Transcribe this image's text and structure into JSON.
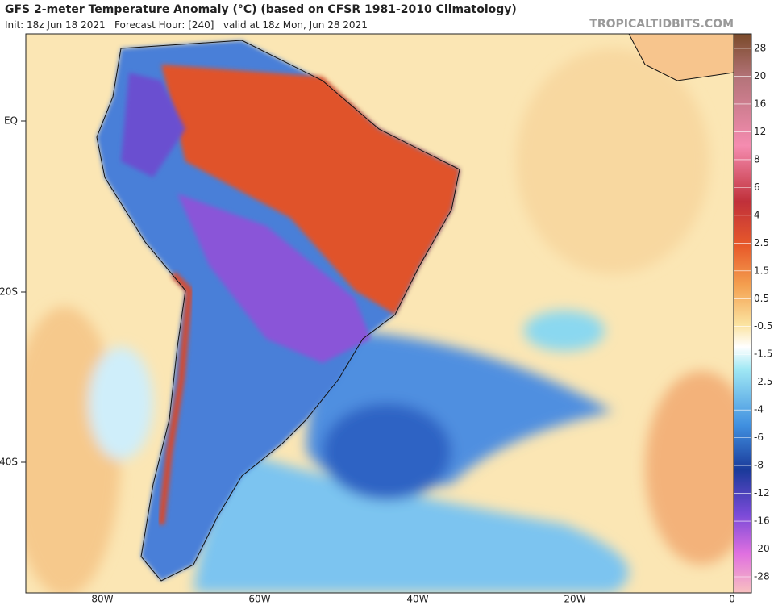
{
  "header": {
    "title": "GFS 2-meter Temperature Anomaly (°C) (based on CFSR 1981-2010 Climatology)",
    "subtitle": "Init: 18z Jun 18 2021   Forecast Hour: [240]   valid at 18z Mon, Jun 28 2021",
    "watermark": "TROPICALTIDBITS.COM"
  },
  "map": {
    "latitude_labels": [
      "EQ",
      "20S",
      "40S"
    ],
    "longitude_labels": [
      "80W",
      "60W",
      "40W",
      "20W",
      "0"
    ]
  },
  "colorbar": {
    "labels": [
      "28",
      "20",
      "16",
      "12",
      "8",
      "6",
      "4",
      "2.5",
      "1.5",
      "0.5",
      "-0.5",
      "-1.5",
      "-2.5",
      "-4",
      "-6",
      "-8",
      "-12",
      "-16",
      "-20",
      "-28"
    ]
  }
}
